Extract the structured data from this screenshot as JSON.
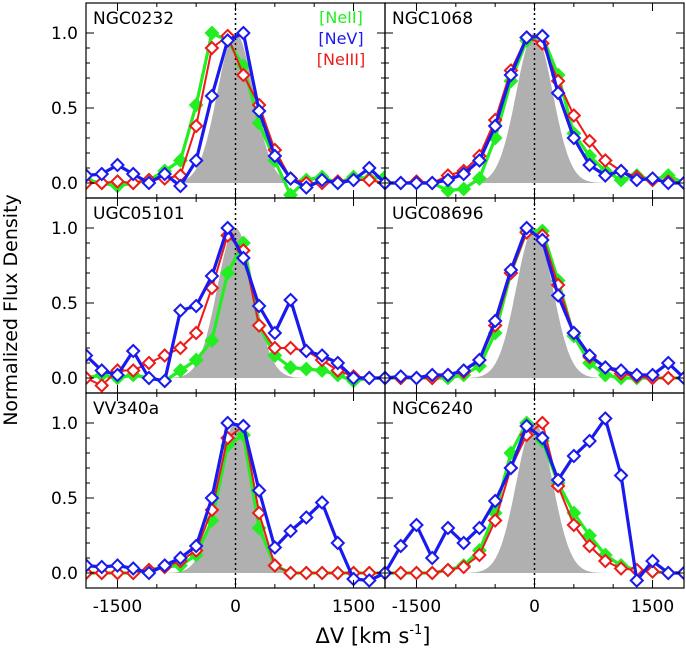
{
  "figure": {
    "ylabel": "Normalized Flux Density",
    "xlabel": "ΔV [km s",
    "xlabel_sup": "-1",
    "xlabel_end": "]",
    "legend": [
      {
        "label": "[NeII]",
        "color": "#22ee22"
      },
      {
        "label": "[NeV]",
        "color": "#1a1aee"
      },
      {
        "label": "[NeIII]",
        "color": "#ee1a1a"
      }
    ]
  },
  "colors": {
    "neii": "#22ee22",
    "nev": "#1a1aee",
    "neiii": "#ee1a1a",
    "instrument": "#b0b0b0",
    "envelope": "#ffffff"
  },
  "chart_data": [
    {
      "type": "line",
      "title": "NGC0232",
      "xlim": [
        -1900,
        1900
      ],
      "ylim": [
        -0.1,
        1.2
      ],
      "xticks": [
        -1500,
        0,
        1500
      ],
      "yticks": [
        0.0,
        0.5,
        1.0
      ],
      "series": [
        {
          "name": "[NeII]",
          "x": [
            -1900,
            -1700,
            -1500,
            -1300,
            -1100,
            -900,
            -700,
            -500,
            -300,
            -100,
            100,
            300,
            500,
            700,
            900,
            1100,
            1300,
            1500,
            1700,
            1900
          ],
          "values": [
            0.02,
            0.0,
            -0.02,
            0.0,
            0.02,
            0.08,
            0.15,
            0.52,
            1.0,
            0.95,
            0.78,
            0.4,
            0.15,
            -0.08,
            0.02,
            0.04,
            0.0,
            0.04,
            0.03,
            0.04
          ]
        },
        {
          "name": "[NeV]",
          "x": [
            -1900,
            -1700,
            -1500,
            -1300,
            -1100,
            -900,
            -700,
            -500,
            -300,
            -100,
            100,
            300,
            500,
            700,
            900,
            1100,
            1300,
            1500,
            1700,
            1900
          ],
          "values": [
            0.05,
            0.06,
            0.12,
            0.06,
            0.0,
            0.06,
            -0.02,
            0.15,
            0.58,
            0.95,
            1.0,
            0.48,
            0.18,
            0.03,
            -0.03,
            0.02,
            0.0,
            0.02,
            0.1,
            0.0
          ]
        },
        {
          "name": "[NeIII]",
          "x": [
            -1900,
            -1700,
            -1500,
            -1300,
            -1100,
            -900,
            -700,
            -500,
            -300,
            -100,
            100,
            300,
            500,
            700,
            900,
            1100,
            1300,
            1500,
            1700,
            1900
          ],
          "values": [
            0.0,
            0.0,
            0.01,
            0.0,
            0.02,
            0.03,
            0.05,
            0.38,
            0.9,
            0.98,
            0.72,
            0.52,
            0.22,
            0.03,
            0.0,
            0.0,
            0.01,
            0.02,
            0.02,
            0.0
          ]
        }
      ]
    },
    {
      "type": "line",
      "title": "NGC1068",
      "xlim": [
        -1900,
        1900
      ],
      "ylim": [
        -0.1,
        1.2
      ],
      "xticks": [
        -1500,
        0,
        1500
      ],
      "yticks": [
        0.0,
        0.5,
        1.0
      ],
      "series": [
        {
          "name": "[NeII]",
          "x": [
            -1900,
            -1700,
            -1500,
            -1300,
            -1100,
            -900,
            -700,
            -500,
            -300,
            -100,
            100,
            300,
            500,
            700,
            900,
            1100,
            1300,
            1500,
            1700,
            1900
          ],
          "values": [
            0.0,
            0.0,
            0.0,
            0.0,
            -0.05,
            -0.04,
            0.03,
            0.3,
            0.68,
            0.95,
            0.98,
            0.72,
            0.33,
            0.18,
            0.08,
            0.02,
            0.05,
            0.02,
            0.05,
            0.0
          ]
        },
        {
          "name": "[NeV]",
          "x": [
            -1900,
            -1700,
            -1500,
            -1300,
            -1100,
            -900,
            -700,
            -500,
            -300,
            -100,
            100,
            300,
            500,
            700,
            900,
            1100,
            1300,
            1500,
            1700,
            1900
          ],
          "values": [
            0.0,
            0.0,
            0.0,
            0.0,
            0.02,
            0.06,
            0.15,
            0.38,
            0.72,
            0.97,
            0.98,
            0.6,
            0.3,
            0.12,
            0.05,
            0.08,
            0.02,
            0.03,
            0.0,
            0.0
          ]
        },
        {
          "name": "[NeIII]",
          "x": [
            -1900,
            -1700,
            -1500,
            -1300,
            -1100,
            -900,
            -700,
            -500,
            -300,
            -100,
            100,
            300,
            500,
            700,
            900,
            1100,
            1300,
            1500,
            1700,
            1900
          ],
          "values": [
            0.0,
            0.0,
            0.01,
            0.0,
            0.05,
            0.08,
            0.18,
            0.42,
            0.75,
            0.97,
            0.93,
            0.68,
            0.45,
            0.28,
            0.15,
            0.08,
            0.04,
            0.02,
            0.01,
            0.0
          ]
        }
      ]
    },
    {
      "type": "line",
      "title": "UGC05101",
      "xlim": [
        -1900,
        1900
      ],
      "ylim": [
        -0.1,
        1.2
      ],
      "xticks": [
        -1500,
        0,
        1500
      ],
      "yticks": [
        0.0,
        0.5,
        1.0
      ],
      "series": [
        {
          "name": "[NeII]",
          "x": [
            -1900,
            -1700,
            -1500,
            -1300,
            -1100,
            -900,
            -700,
            -500,
            -300,
            -100,
            100,
            300,
            500,
            700,
            900,
            1100,
            1300,
            1500,
            1700,
            1900
          ],
          "values": [
            0.0,
            0.02,
            0.0,
            0.02,
            0.0,
            -0.02,
            0.05,
            0.12,
            0.25,
            0.7,
            0.9,
            0.35,
            0.15,
            0.07,
            0.06,
            0.05,
            0.02,
            -0.02,
            0.0,
            0.0
          ]
        },
        {
          "name": "[NeV]",
          "x": [
            -1900,
            -1700,
            -1500,
            -1300,
            -1100,
            -900,
            -700,
            -500,
            -300,
            -100,
            100,
            300,
            500,
            700,
            900,
            1100,
            1300,
            1500,
            1700,
            1900
          ],
          "values": [
            0.15,
            0.05,
            0.02,
            0.18,
            0.0,
            -0.02,
            0.45,
            0.48,
            0.68,
            1.0,
            0.8,
            0.48,
            0.3,
            0.52,
            0.18,
            0.15,
            0.1,
            0.0,
            0.0,
            0.0
          ]
        },
        {
          "name": "[NeIII]",
          "x": [
            -1900,
            -1700,
            -1500,
            -1300,
            -1100,
            -900,
            -700,
            -500,
            -300,
            -100,
            100,
            300,
            500,
            700,
            900,
            1100,
            1300,
            1500,
            1700,
            1900
          ],
          "values": [
            0.0,
            -0.05,
            0.05,
            0.05,
            0.1,
            0.15,
            0.2,
            0.3,
            0.6,
            0.95,
            0.85,
            0.35,
            0.2,
            0.2,
            0.18,
            0.12,
            0.05,
            0.01,
            0.0,
            0.0
          ]
        }
      ]
    },
    {
      "type": "line",
      "title": "UGC08696",
      "xlim": [
        -1900,
        1900
      ],
      "ylim": [
        -0.1,
        1.2
      ],
      "xticks": [
        -1500,
        0,
        1500
      ],
      "yticks": [
        0.0,
        0.5,
        1.0
      ],
      "series": [
        {
          "name": "[NeII]",
          "x": [
            -1900,
            -1700,
            -1500,
            -1300,
            -1100,
            -900,
            -700,
            -500,
            -300,
            -100,
            100,
            300,
            500,
            700,
            900,
            1100,
            1300,
            1500,
            1700,
            1900
          ],
          "values": [
            0.0,
            0.0,
            0.0,
            0.0,
            0.0,
            0.02,
            0.08,
            0.3,
            0.7,
            0.98,
            0.98,
            0.65,
            0.28,
            0.1,
            0.02,
            0.0,
            0.0,
            0.0,
            0.0,
            0.0
          ]
        },
        {
          "name": "[NeV]",
          "x": [
            -1900,
            -1700,
            -1500,
            -1300,
            -1100,
            -900,
            -700,
            -500,
            -300,
            -100,
            100,
            300,
            500,
            700,
            900,
            1100,
            1300,
            1500,
            1700,
            1900
          ],
          "values": [
            0.0,
            0.01,
            0.0,
            0.02,
            0.02,
            0.05,
            0.12,
            0.38,
            0.72,
            1.0,
            0.92,
            0.55,
            0.3,
            0.15,
            0.07,
            0.05,
            0.02,
            0.02,
            0.1,
            0.0
          ]
        },
        {
          "name": "[NeIII]",
          "x": [
            -1900,
            -1700,
            -1500,
            -1300,
            -1100,
            -900,
            -700,
            -500,
            -300,
            -100,
            100,
            300,
            500,
            700,
            900,
            1100,
            1300,
            1500,
            1700,
            1900
          ],
          "values": [
            0.0,
            0.0,
            0.0,
            0.0,
            0.02,
            0.04,
            0.12,
            0.35,
            0.7,
            0.97,
            0.95,
            0.62,
            0.3,
            0.14,
            0.07,
            0.03,
            0.01,
            0.0,
            0.0,
            0.0
          ]
        }
      ]
    },
    {
      "type": "line",
      "title": "VV340a",
      "xlim": [
        -1900,
        1900
      ],
      "ylim": [
        -0.1,
        1.2
      ],
      "xticks": [
        -1500,
        0,
        1500
      ],
      "yticks": [
        0.0,
        0.5,
        1.0
      ],
      "series": [
        {
          "name": "[NeII]",
          "x": [
            -1900,
            -1700,
            -1500,
            -1300,
            -1100,
            -900,
            -700,
            -500,
            -300,
            -100,
            100,
            300,
            500,
            700,
            900,
            1100,
            1300,
            1500,
            1700,
            1900
          ],
          "values": [
            0.0,
            0.0,
            0.0,
            0.0,
            0.02,
            0.04,
            0.05,
            0.12,
            0.35,
            0.85,
            0.92,
            0.3,
            0.05,
            0.0,
            0.0,
            0.0,
            0.0,
            0.0,
            0.0,
            0.0
          ]
        },
        {
          "name": "[NeV]",
          "x": [
            -1900,
            -1700,
            -1500,
            -1300,
            -1100,
            -900,
            -700,
            -500,
            -300,
            -100,
            100,
            300,
            500,
            700,
            900,
            1100,
            1300,
            1500,
            1700,
            1900
          ],
          "values": [
            0.05,
            0.04,
            0.05,
            0.03,
            0.0,
            0.05,
            0.1,
            0.18,
            0.5,
            1.0,
            0.98,
            0.55,
            0.17,
            0.28,
            0.37,
            0.47,
            0.2,
            -0.04,
            -0.05,
            0.0
          ]
        },
        {
          "name": "[NeIII]",
          "x": [
            -1900,
            -1700,
            -1500,
            -1300,
            -1100,
            -900,
            -700,
            -500,
            -300,
            -100,
            100,
            300,
            500,
            700,
            900,
            1100,
            1300,
            1500,
            1700,
            1900
          ],
          "values": [
            0.0,
            0.0,
            0.0,
            0.0,
            0.02,
            0.04,
            0.08,
            0.15,
            0.42,
            0.9,
            0.98,
            0.4,
            0.05,
            0.0,
            0.0,
            0.0,
            0.0,
            0.0,
            0.0,
            0.0
          ]
        }
      ]
    },
    {
      "type": "line",
      "title": "NGC6240",
      "xlim": [
        -1900,
        1900
      ],
      "ylim": [
        -0.1,
        1.2
      ],
      "xticks": [
        -1500,
        0,
        1500
      ],
      "yticks": [
        0.0,
        0.5,
        1.0
      ],
      "series": [
        {
          "name": "[NeII]",
          "x": [
            -1900,
            -1700,
            -1500,
            -1300,
            -1100,
            -900,
            -700,
            -500,
            -300,
            -100,
            100,
            300,
            500,
            700,
            900,
            1100,
            1300,
            1500,
            1700,
            1900
          ],
          "values": [
            0.0,
            0.0,
            0.0,
            0.0,
            0.02,
            0.05,
            0.15,
            0.4,
            0.8,
            1.0,
            0.88,
            0.6,
            0.4,
            0.25,
            0.12,
            0.05,
            0.02,
            0.01,
            0.0,
            0.0
          ]
        },
        {
          "name": "[NeV]",
          "x": [
            -1900,
            -1700,
            -1500,
            -1300,
            -1100,
            -900,
            -700,
            -500,
            -300,
            -100,
            100,
            300,
            500,
            700,
            900,
            1100,
            1300,
            1500,
            1700,
            1900
          ],
          "values": [
            0.0,
            0.18,
            0.32,
            0.1,
            0.3,
            0.2,
            0.3,
            0.48,
            0.7,
            0.98,
            0.9,
            0.62,
            0.78,
            0.88,
            1.03,
            0.65,
            -0.05,
            0.08,
            0.0,
            0.0
          ]
        },
        {
          "name": "[NeIII]",
          "x": [
            -1900,
            -1700,
            -1500,
            -1300,
            -1100,
            -900,
            -700,
            -500,
            -300,
            -100,
            100,
            300,
            500,
            700,
            900,
            1100,
            1300,
            1500,
            1700,
            1900
          ],
          "values": [
            0.0,
            0.0,
            0.0,
            0.0,
            0.02,
            0.04,
            0.12,
            0.35,
            0.7,
            0.92,
            1.0,
            0.58,
            0.32,
            0.18,
            0.08,
            0.03,
            0.02,
            0.01,
            0.0,
            0.0
          ]
        }
      ]
    }
  ]
}
